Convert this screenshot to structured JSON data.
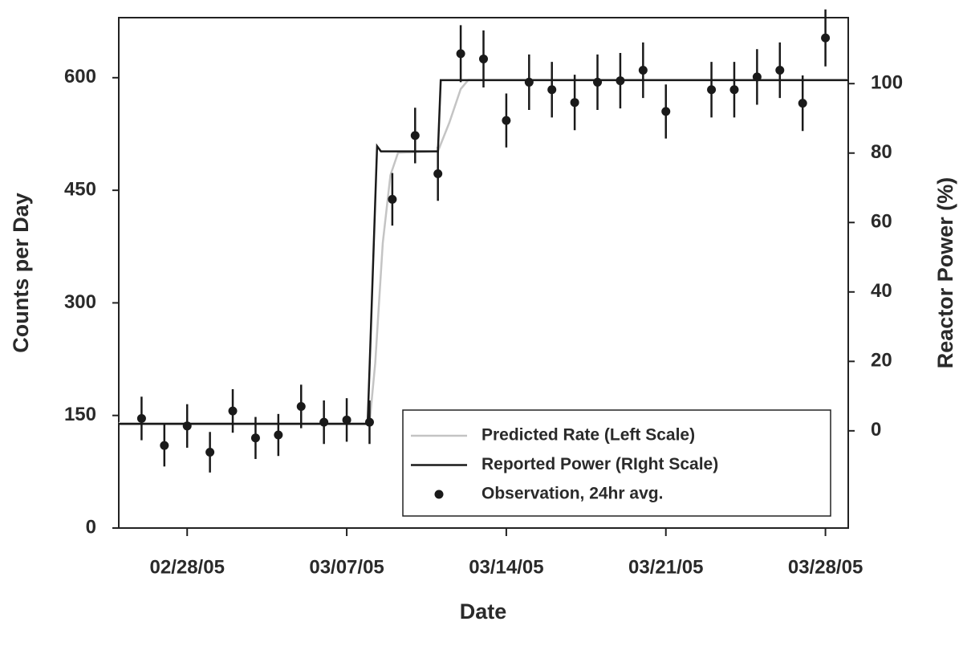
{
  "chart_data": {
    "type": "line",
    "x_label": "Date",
    "y_label": "Counts per Day",
    "y2_label": "Reactor Power (%)",
    "xlim": [
      "2005-02-25",
      "2005-03-29"
    ],
    "xticks": [
      {
        "value": "2005-02-28",
        "label": "02/28/05"
      },
      {
        "value": "2005-03-07",
        "label": "03/07/05"
      },
      {
        "value": "2005-03-14",
        "label": "03/14/05"
      },
      {
        "value": "2005-03-21",
        "label": "03/21/05"
      },
      {
        "value": "2005-03-28",
        "label": "03/28/05"
      }
    ],
    "ylim": [
      0,
      680
    ],
    "yticks": [
      0,
      150,
      300,
      450,
      600
    ],
    "y2lim": [
      -28,
      119
    ],
    "y2ticks": [
      0,
      20,
      40,
      60,
      80,
      100
    ],
    "legend": "lower right",
    "series": [
      {
        "name": "Predicted Rate (Left Scale)",
        "color": "#c4c4c4",
        "axis": "y",
        "x": [
          "2005-02-25",
          "2005-03-08T00:00",
          "2005-03-08T06:00",
          "2005-03-08T14:00",
          "2005-03-08T22:00",
          "2005-03-09T06:00",
          "2005-03-11T00:00",
          "2005-03-11T12:00",
          "2005-03-12T00:00",
          "2005-03-12T08:00",
          "2005-03-29"
        ],
        "values": [
          140,
          140,
          220,
          380,
          470,
          500,
          502,
          540,
          585,
          597,
          597
        ]
      },
      {
        "name": "Reported Power (RIght Scale)",
        "color": "#1a1a1a",
        "axis": "y2",
        "x": [
          "2005-02-25",
          "2005-03-07T22:00",
          "2005-03-08T00:00",
          "2005-03-08T08:00",
          "2005-03-08T12:00",
          "2005-03-11T00:00",
          "2005-03-11T03:00",
          "2005-03-29"
        ],
        "values": [
          2,
          2,
          18,
          82,
          80.5,
          80.5,
          101,
          101
        ]
      },
      {
        "name": "Observation, 24hr avg.",
        "color": "#1a1a1a",
        "axis": "y",
        "type": "scatter",
        "x": [
          "2005-02-26",
          "2005-02-27",
          "2005-02-28",
          "2005-03-01",
          "2005-03-02",
          "2005-03-03",
          "2005-03-04",
          "2005-03-05",
          "2005-03-06",
          "2005-03-07",
          "2005-03-08",
          "2005-03-09",
          "2005-03-10",
          "2005-03-11",
          "2005-03-12",
          "2005-03-13",
          "2005-03-14",
          "2005-03-15",
          "2005-03-16",
          "2005-03-17",
          "2005-03-18",
          "2005-03-19",
          "2005-03-20",
          "2005-03-21",
          "2005-03-23",
          "2005-03-24",
          "2005-03-25",
          "2005-03-26",
          "2005-03-27",
          "2005-03-28"
        ],
        "values": [
          146,
          110,
          136,
          101,
          156,
          120,
          124,
          162,
          141,
          144,
          141,
          438,
          523,
          472,
          632,
          625,
          543,
          594,
          584,
          567,
          594,
          596,
          610,
          555,
          584,
          584,
          601,
          610,
          566,
          653
        ],
        "errors": [
          29,
          28,
          29,
          27,
          29,
          28,
          28,
          29,
          29,
          29,
          29,
          35,
          37,
          36,
          38,
          38,
          36,
          37,
          37,
          37,
          37,
          37,
          37,
          36,
          37,
          37,
          37,
          37,
          37,
          38
        ]
      }
    ]
  }
}
